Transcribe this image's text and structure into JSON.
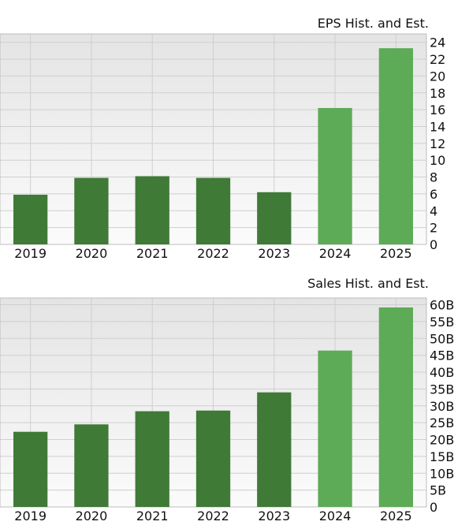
{
  "chart_data": [
    {
      "type": "bar",
      "title": "EPS Hist. and Est.",
      "categories": [
        "2019",
        "2020",
        "2021",
        "2022",
        "2023",
        "2024",
        "2025"
      ],
      "values": [
        5.9,
        7.9,
        8.1,
        7.9,
        6.2,
        16.2,
        23.3
      ],
      "estimate_from_index": 5,
      "ylim": [
        0,
        25
      ],
      "yticks": [
        0,
        2,
        4,
        6,
        8,
        10,
        12,
        14,
        16,
        18,
        20,
        22,
        24
      ],
      "ytick_labels": [
        "0",
        "2",
        "4",
        "6",
        "8",
        "10",
        "12",
        "14",
        "16",
        "18",
        "20",
        "22",
        "24"
      ],
      "grid": true,
      "colors": {
        "historical": "#3f7a37",
        "estimate": "#5dab57",
        "plot_top": "#e4e4e4",
        "plot_bottom": "#fbfbfb",
        "grid": "#cfcfcf"
      }
    },
    {
      "type": "bar",
      "title": "Sales Hist. and Est.",
      "categories": [
        "2019",
        "2020",
        "2021",
        "2022",
        "2023",
        "2024",
        "2025"
      ],
      "values": [
        22.3,
        24.5,
        28.4,
        28.6,
        34.0,
        46.4,
        59.2
      ],
      "estimate_from_index": 5,
      "ylim": [
        0,
        62
      ],
      "yticks": [
        0,
        5,
        10,
        15,
        20,
        25,
        30,
        35,
        40,
        45,
        50,
        55,
        60
      ],
      "ytick_labels": [
        "0",
        "5B",
        "10B",
        "15B",
        "20B",
        "25B",
        "30B",
        "35B",
        "40B",
        "45B",
        "50B",
        "55B",
        "60B"
      ],
      "grid": true,
      "colors": {
        "historical": "#3f7a37",
        "estimate": "#5dab57",
        "plot_top": "#e4e4e4",
        "plot_bottom": "#fbfbfb",
        "grid": "#cfcfcf"
      }
    }
  ]
}
